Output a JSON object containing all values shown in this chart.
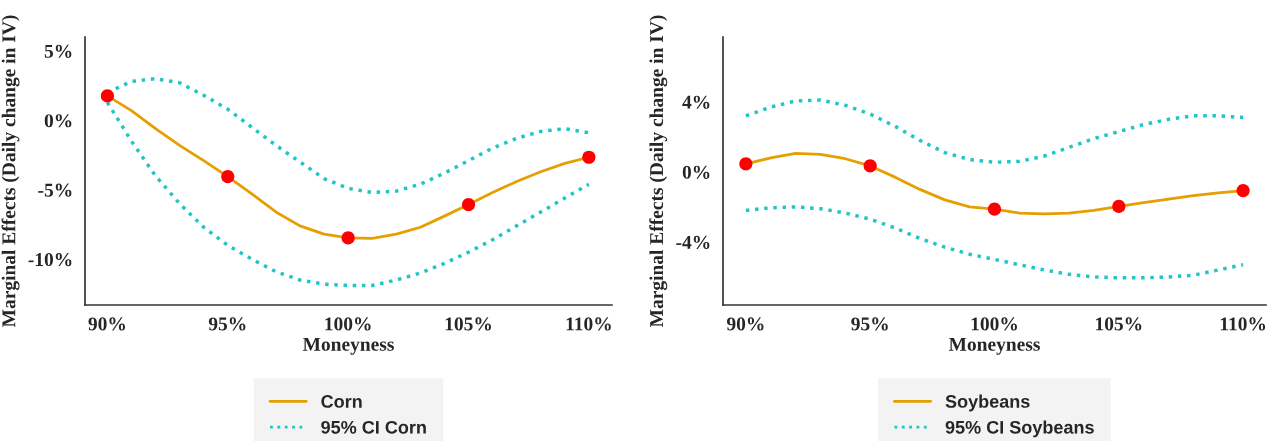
{
  "chart_data": [
    {
      "type": "line",
      "xlabel": "Moneyness",
      "ylabel": "Marginal Effects (Daily change in IV)",
      "xlim": [
        89.07,
        110.96
      ],
      "ylim": [
        -13.3,
        6
      ],
      "xticks": [
        {
          "value": 90,
          "label": "90%"
        },
        {
          "value": 95,
          "label": "95%"
        },
        {
          "value": 100,
          "label": "100%"
        },
        {
          "value": 105,
          "label": "105%"
        },
        {
          "value": 110,
          "label": "110%"
        }
      ],
      "yticks": [
        {
          "value": -10,
          "label": "-10%"
        },
        {
          "value": -5,
          "label": "-5%"
        },
        {
          "value": 0,
          "label": "0%"
        },
        {
          "value": 5,
          "label": "5%"
        }
      ],
      "grid": false,
      "legend": "bottom",
      "x": [
        90,
        91,
        92,
        93,
        94,
        95,
        96,
        97,
        98,
        99,
        100,
        101,
        102,
        103,
        104,
        105,
        106,
        107,
        108,
        109,
        110
      ],
      "series": [
        {
          "name": "Corn",
          "color": "#e69f00",
          "line_style": "solid",
          "marker": "none",
          "values": [
            1.76,
            0.7,
            -0.6,
            -1.8,
            -2.9,
            -4.05,
            -5.3,
            -6.6,
            -7.6,
            -8.2,
            -8.47,
            -8.5,
            -8.2,
            -7.7,
            -6.9,
            -6.07,
            -5.2,
            -4.4,
            -3.7,
            -3.1,
            -2.66
          ]
        },
        {
          "name": "95% CI Corn",
          "color": "#20c5c5",
          "line_style": "dotted",
          "marker": "none",
          "values": [
            2.0,
            2.8,
            3.0,
            2.7,
            1.8,
            0.8,
            -0.5,
            -1.8,
            -3.0,
            -4.2,
            -4.9,
            -5.2,
            -5.1,
            -4.6,
            -3.8,
            -2.9,
            -2.0,
            -1.3,
            -0.8,
            -0.6,
            -0.9
          ]
        },
        {
          "color": "#20c5c5",
          "line_style": "dotted",
          "marker": "none",
          "values": [
            1.3,
            -1.5,
            -4.0,
            -6.0,
            -7.7,
            -9.0,
            -10.0,
            -10.9,
            -11.5,
            -11.8,
            -11.9,
            -11.9,
            -11.5,
            -11.0,
            -10.3,
            -9.5,
            -8.6,
            -7.6,
            -6.6,
            -5.6,
            -4.6
          ]
        },
        {
          "type": "scatter",
          "color": "#ff0000",
          "marker": "circle",
          "x": [
            90,
            95,
            100,
            105,
            110
          ],
          "values": [
            1.76,
            -4.05,
            -8.47,
            -6.07,
            -2.66
          ]
        }
      ]
    },
    {
      "type": "line",
      "xlabel": "Moneyness",
      "ylabel": "Marginal Effects (Daily change in IV)",
      "xlim": [
        89.08,
        110.92
      ],
      "ylim": [
        -7.6,
        7.7
      ],
      "xticks": [
        {
          "value": 90,
          "label": "90%"
        },
        {
          "value": 95,
          "label": "95%"
        },
        {
          "value": 100,
          "label": "100%"
        },
        {
          "value": 105,
          "label": "105%"
        },
        {
          "value": 110,
          "label": "110%"
        }
      ],
      "yticks": [
        {
          "value": -4,
          "label": "-4%"
        },
        {
          "value": 0,
          "label": "0%"
        },
        {
          "value": 4,
          "label": "4%"
        }
      ],
      "grid": false,
      "legend": "bottom",
      "x": [
        90,
        91,
        92,
        93,
        94,
        95,
        96,
        97,
        98,
        99,
        100,
        101,
        102,
        103,
        104,
        105,
        106,
        107,
        108,
        109,
        110
      ],
      "series": [
        {
          "name": "Soybeans",
          "color": "#e69f00",
          "line_style": "solid",
          "marker": "none",
          "values": [
            0.46,
            0.8,
            1.05,
            1.0,
            0.75,
            0.34,
            -0.3,
            -1.0,
            -1.6,
            -2.0,
            -2.13,
            -2.35,
            -2.4,
            -2.35,
            -2.2,
            -1.97,
            -1.75,
            -1.55,
            -1.35,
            -1.2,
            -1.07
          ]
        },
        {
          "name": "95% CI Soybeans",
          "color": "#20c5c5",
          "line_style": "dotted",
          "marker": "none",
          "values": [
            3.2,
            3.7,
            4.05,
            4.1,
            3.8,
            3.3,
            2.6,
            1.8,
            1.1,
            0.7,
            0.55,
            0.6,
            0.9,
            1.4,
            1.9,
            2.3,
            2.7,
            3.0,
            3.2,
            3.2,
            3.1
          ]
        },
        {
          "color": "#20c5c5",
          "line_style": "dotted",
          "marker": "none",
          "values": [
            -2.2,
            -2.05,
            -2.0,
            -2.1,
            -2.35,
            -2.7,
            -3.2,
            -3.8,
            -4.3,
            -4.7,
            -5.0,
            -5.3,
            -5.6,
            -5.85,
            -6.0,
            -6.05,
            -6.05,
            -6.0,
            -5.9,
            -5.6,
            -5.3
          ]
        },
        {
          "type": "scatter",
          "color": "#ff0000",
          "marker": "circle",
          "x": [
            90,
            95,
            100,
            105,
            110
          ],
          "values": [
            0.46,
            0.34,
            -2.13,
            -1.97,
            -1.07
          ]
        }
      ]
    }
  ]
}
